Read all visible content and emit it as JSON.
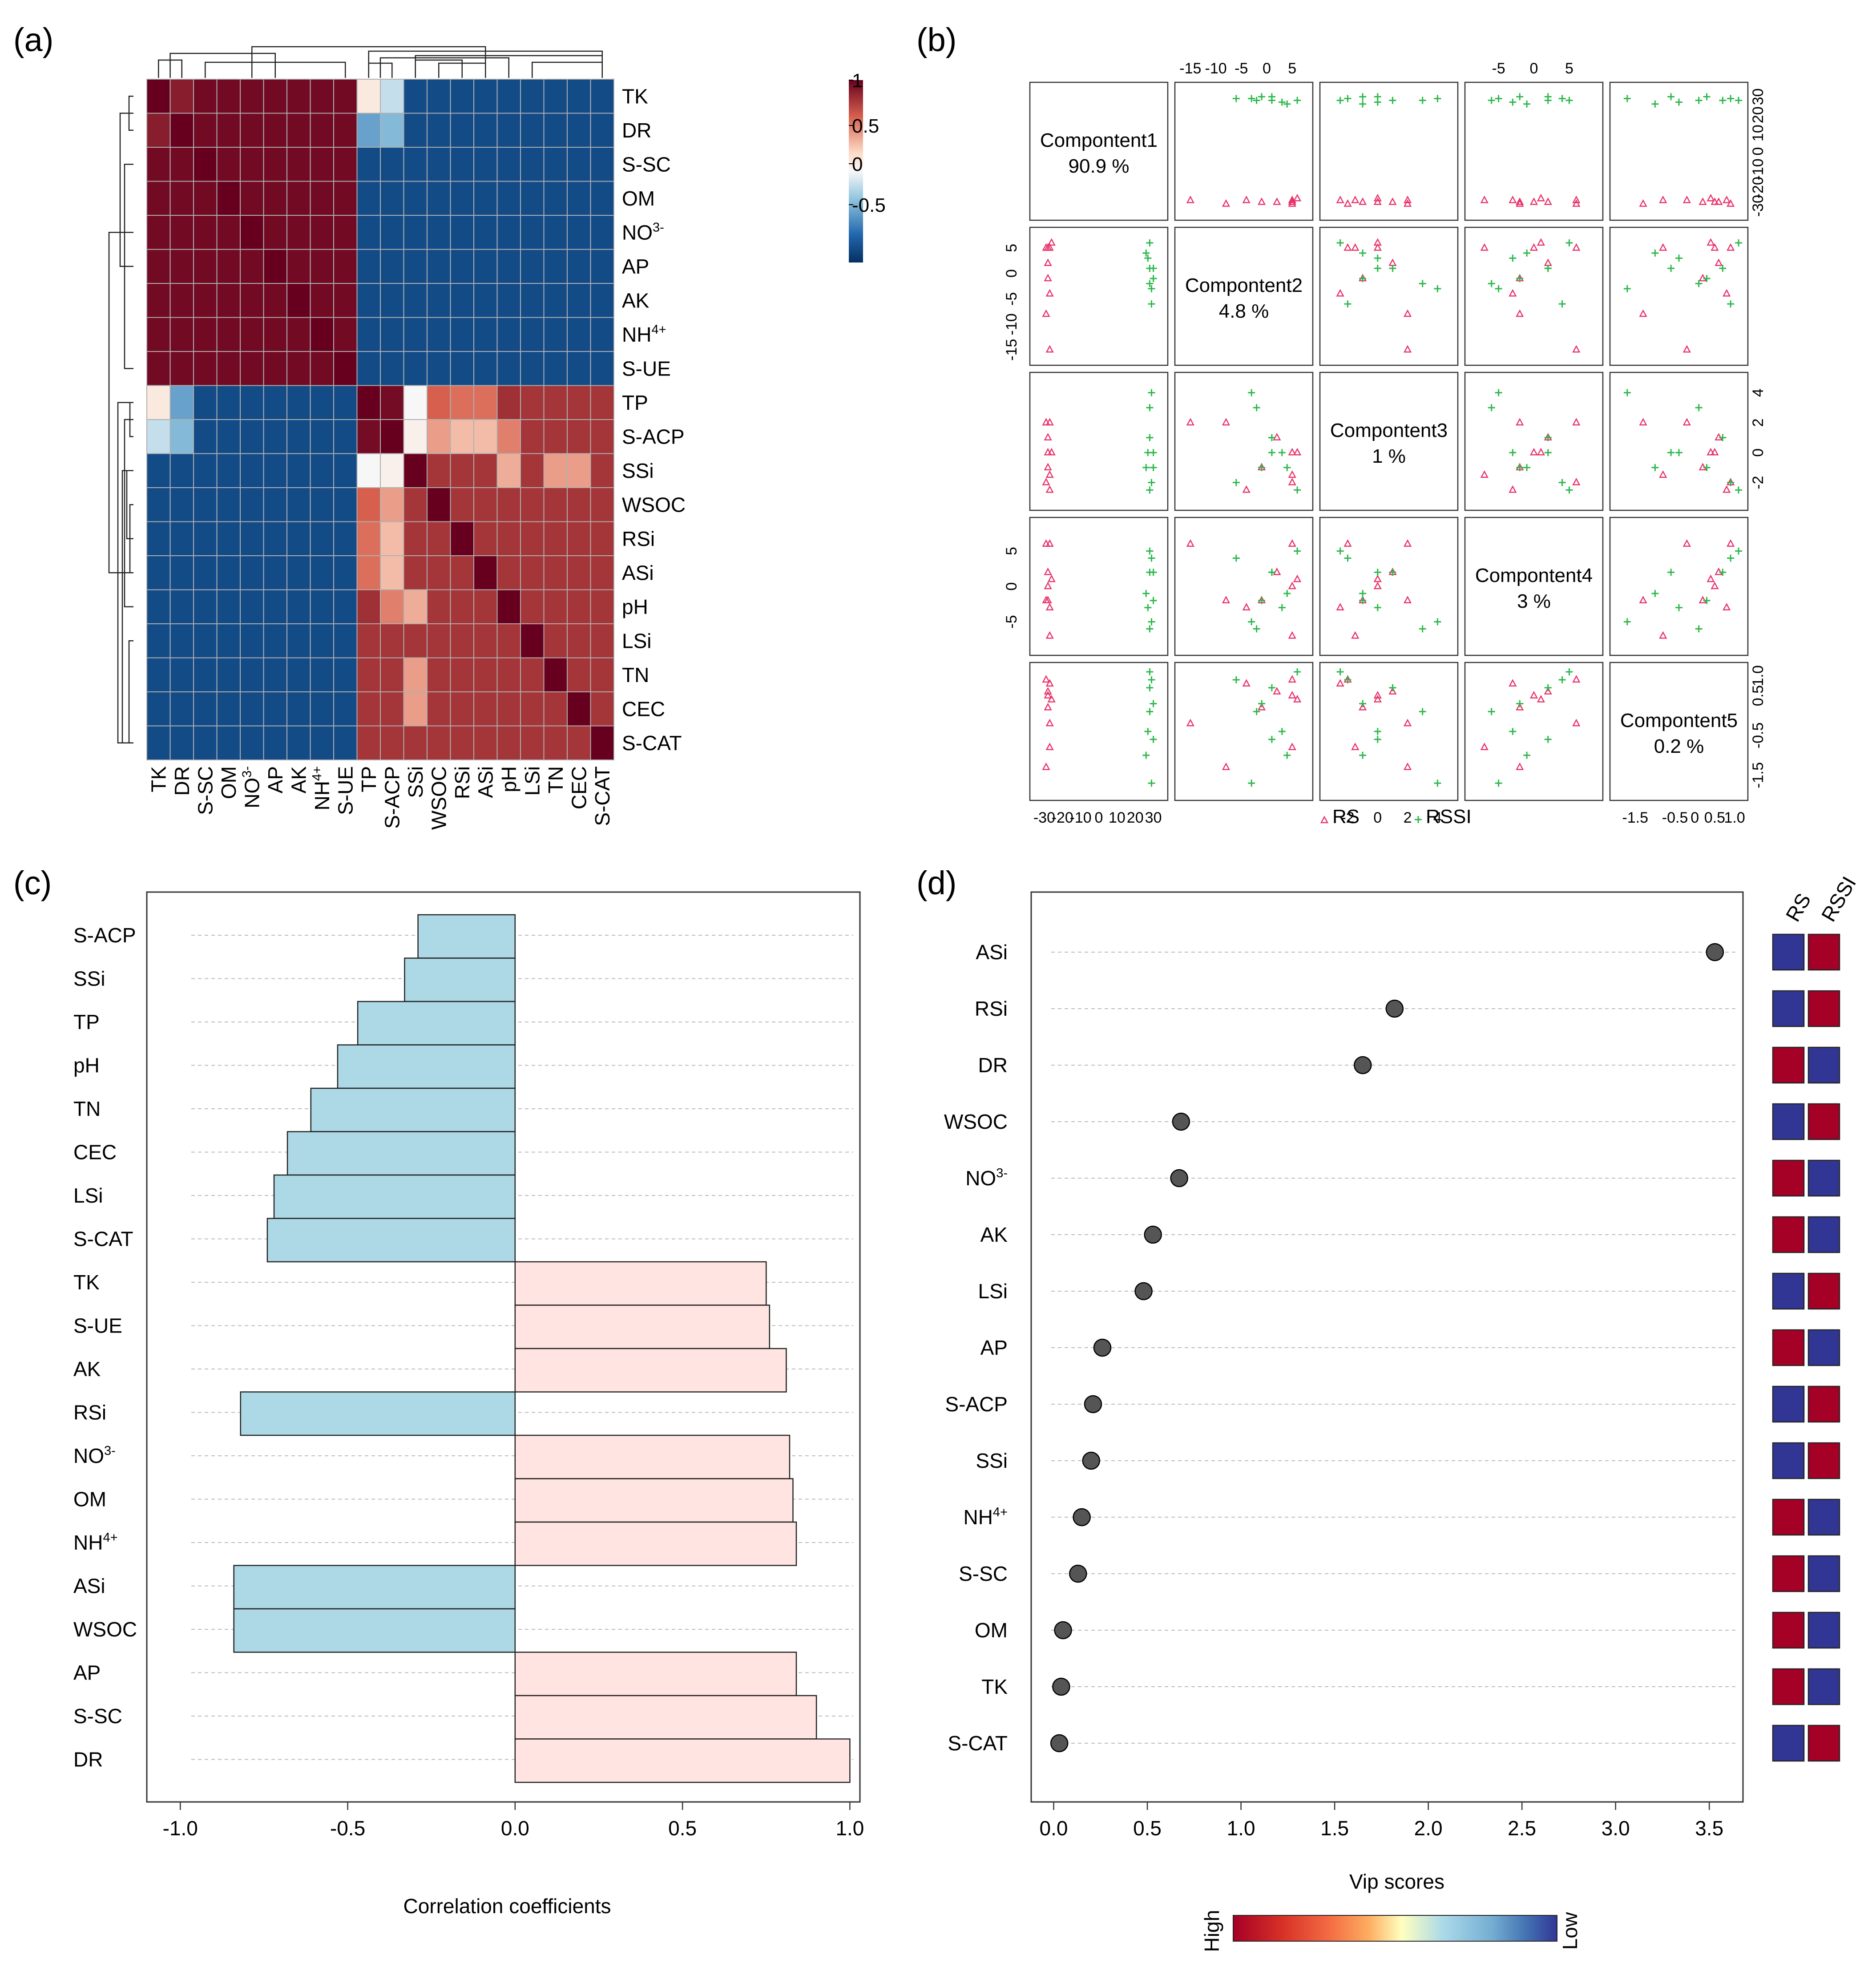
{
  "panel_labels": {
    "a": "(a)",
    "b": "(b)",
    "c": "(c)",
    "d": "(d)"
  },
  "colors": {
    "neg": "#ADD8E6",
    "pos": "#FFE4E1",
    "high": "#A50026",
    "low": "#313695",
    "point": "#555555",
    "rs": "#E8336A",
    "rssi": "#2DB84B"
  },
  "chart_data": [
    {
      "type": "heatmap",
      "panel": "a",
      "row_labels": [
        "TK",
        "DR",
        "S-SC",
        "OM",
        "NO3-",
        "AP",
        "AK",
        "NH4+",
        "S-UE",
        "TP",
        "S-ACP",
        "SSi",
        "WSOC",
        "RSi",
        "ASi",
        "pH",
        "LSi",
        "TN",
        "CEC",
        "S-CAT"
      ],
      "col_labels": [
        "TK",
        "DR",
        "S-SC",
        "OM",
        "NO3-",
        "AP",
        "AK",
        "NH4+",
        "S-UE",
        "TP",
        "S-ACP",
        "SSi",
        "WSOC",
        "RSi",
        "ASi",
        "pH",
        "LSi",
        "TN",
        "CEC",
        "S-CAT"
      ],
      "legend_ticks": [
        "1",
        "0.5",
        "0",
        "-0.5"
      ],
      "color_range": [
        -1,
        1
      ],
      "clusters": [
        [
          "TK",
          "DR",
          "S-SC",
          "OM",
          "NO3-",
          "AP",
          "AK",
          "NH4+",
          "S-UE"
        ],
        [
          "TP",
          "S-ACP",
          "SSi",
          "WSOC",
          "RSi",
          "ASi",
          "pH",
          "LSi",
          "TN",
          "CEC",
          "S-CAT"
        ]
      ]
    },
    {
      "type": "scatter",
      "panel": "b",
      "components": [
        {
          "name": "Compontent1",
          "pct": "90.9 %"
        },
        {
          "name": "Compontent2",
          "pct": "4.8 %"
        },
        {
          "name": "Compontent3",
          "pct": "1 %"
        },
        {
          "name": "Compontent4",
          "pct": "3 %"
        },
        {
          "name": "Compontent5",
          "pct": "0.2 %"
        }
      ],
      "legend": [
        "RS",
        "RSSI"
      ],
      "top_ticks": {
        "c2": [
          "-15",
          "-10",
          "-5",
          "0",
          "5"
        ],
        "c4": [
          "-5",
          "0",
          "5"
        ]
      },
      "right_ticks": {
        "c1": [
          "-30",
          "-20",
          "-10",
          "0",
          "10",
          "20",
          "30"
        ],
        "c3": [
          "-2",
          "0",
          "2",
          "4"
        ],
        "c5": [
          "-1.5",
          "-0.5",
          "0.5",
          "1.0"
        ]
      },
      "left_ticks": {
        "c2": [
          "-15",
          "-10",
          "-5",
          "0",
          "5"
        ],
        "c4": [
          "-5",
          "0",
          "5"
        ]
      },
      "bottom_ticks": {
        "c1": [
          "-30",
          "-20",
          "-10",
          "0",
          "10",
          "20",
          "30"
        ],
        "c3": [
          "-2",
          "0",
          "2",
          "4"
        ],
        "c5": [
          "-1.5",
          "-0.5",
          "0",
          "0.5",
          "1.0"
        ]
      },
      "scores": {
        "RS": [
          [
            -29,
            5,
            -2,
            6,
            0.9
          ],
          [
            -28,
            2,
            1,
            2,
            0.6
          ],
          [
            -28,
            -1,
            -1,
            -2,
            0.2
          ],
          [
            -27,
            -4,
            -2.5,
            -3,
            0.8
          ],
          [
            -26,
            6,
            0,
            1,
            0.4
          ],
          [
            -27,
            -15,
            2,
            6,
            -0.2
          ],
          [
            -27,
            5,
            -1.5,
            -7,
            -0.8
          ],
          [
            -29,
            -8,
            2,
            -2,
            -1.3
          ],
          [
            -28,
            5,
            0,
            0,
            0.5
          ]
        ],
        "RSSI": [
          [
            28,
            6,
            -2.5,
            5,
            1.1
          ],
          [
            29,
            -3,
            4,
            -5,
            -1.7
          ],
          [
            28,
            1,
            1,
            2,
            0.7
          ],
          [
            30,
            -1,
            -1,
            -2,
            0.3
          ],
          [
            27,
            3,
            0,
            -3,
            -0.4
          ],
          [
            29,
            -6,
            -2,
            4,
            0.9
          ],
          [
            26,
            4,
            -1,
            -1,
            -1.0
          ],
          [
            28,
            -2,
            3,
            -6,
            0.1
          ],
          [
            30,
            1,
            0,
            2,
            -0.6
          ]
        ]
      }
    },
    {
      "type": "bar",
      "panel": "c",
      "orientation": "horizontal",
      "categories": [
        "S-ACP",
        "SSi",
        "TP",
        "pH",
        "TN",
        "CEC",
        "LSi",
        "S-CAT",
        "TK",
        "S-UE",
        "AK",
        "RSi",
        "NO3-",
        "OM",
        "NH4+",
        "ASi",
        "WSOC",
        "AP",
        "S-SC",
        "DR"
      ],
      "values": [
        -0.29,
        -0.33,
        -0.47,
        -0.53,
        -0.61,
        -0.68,
        -0.72,
        -0.74,
        0.75,
        0.76,
        0.81,
        -0.82,
        0.82,
        0.83,
        0.84,
        -0.84,
        -0.84,
        0.84,
        0.9,
        1.0
      ],
      "xlabel": "Correlation coefficients",
      "xticks": [
        "-1.0",
        "-0.5",
        "0.0",
        "0.5",
        "1.0"
      ],
      "xlim": [
        -1.1,
        1.03
      ]
    },
    {
      "type": "scatter",
      "panel": "d",
      "categories": [
        "ASi",
        "RSi",
        "DR",
        "WSOC",
        "NO3-",
        "AK",
        "LSi",
        "AP",
        "S-ACP",
        "SSi",
        "NH4+",
        "S-SC",
        "OM",
        "TK",
        "S-CAT"
      ],
      "values": [
        3.53,
        1.82,
        1.65,
        0.68,
        0.67,
        0.53,
        0.48,
        0.26,
        0.21,
        0.2,
        0.15,
        0.13,
        0.05,
        0.04,
        0.03
      ],
      "rs_level": [
        "low",
        "low",
        "high",
        "low",
        "high",
        "high",
        "low",
        "high",
        "low",
        "low",
        "high",
        "high",
        "high",
        "high",
        "low"
      ],
      "rssi_level": [
        "high",
        "high",
        "low",
        "high",
        "low",
        "low",
        "high",
        "low",
        "high",
        "high",
        "low",
        "low",
        "low",
        "low",
        "high"
      ],
      "group_labels": [
        "RS",
        "RSSI"
      ],
      "xlabel": "Vip scores",
      "xticks": [
        "0.0",
        "0.5",
        "1.0",
        "1.5",
        "2.0",
        "2.5",
        "3.0",
        "3.5"
      ],
      "xlim": [
        -0.12,
        3.68
      ],
      "colorbar": {
        "high": "High",
        "low": "Low"
      }
    }
  ]
}
